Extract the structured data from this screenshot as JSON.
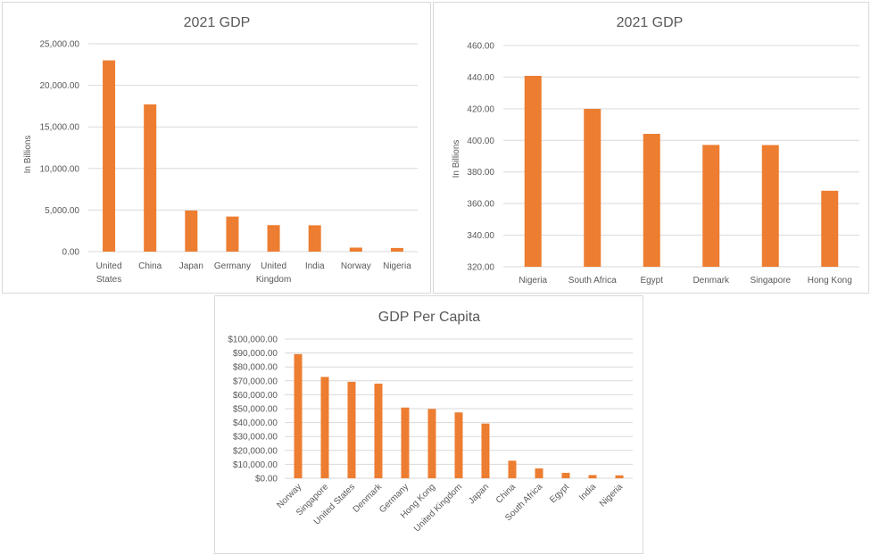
{
  "colors": {
    "bar": "#ed7d31",
    "grid": "#d9d9d9",
    "text": "#595959"
  },
  "chart_data": [
    {
      "type": "bar",
      "title": "2021 GDP",
      "ylabel": "In Billions",
      "xlabel": "",
      "categories": [
        "United States",
        "China",
        "Japan",
        "Germany",
        "United Kingdom",
        "India",
        "Norway",
        "Nigeria"
      ],
      "category_lines": [
        [
          "United",
          "States"
        ],
        [
          "China"
        ],
        [
          "Japan"
        ],
        [
          "Germany"
        ],
        [
          "United",
          "Kingdom"
        ],
        [
          "India"
        ],
        [
          "Norway"
        ],
        [
          "Nigeria"
        ]
      ],
      "values": [
        23000,
        17700,
        4940,
        4220,
        3190,
        3170,
        482,
        440
      ],
      "ylim": [
        0,
        25000
      ],
      "ticks": [
        0,
        5000,
        10000,
        15000,
        20000,
        25000
      ],
      "tick_labels": [
        "0.00",
        "5,000.00",
        "10,000.00",
        "15,000.00",
        "20,000.00",
        "25,000.00"
      ],
      "grid": true
    },
    {
      "type": "bar",
      "title": "2021 GDP",
      "ylabel": "In Billions",
      "xlabel": "",
      "categories": [
        "Nigeria",
        "South Africa",
        "Egypt",
        "Denmark",
        "Singapore",
        "Hong Kong"
      ],
      "category_lines": [
        [
          "Nigeria"
        ],
        [
          "South Africa"
        ],
        [
          "Egypt"
        ],
        [
          "Denmark"
        ],
        [
          "Singapore"
        ],
        [
          "Hong Kong"
        ]
      ],
      "values": [
        440.8,
        419.9,
        404.1,
        397.1,
        397.0,
        368.1
      ],
      "ylim": [
        320,
        460
      ],
      "ticks": [
        320,
        340,
        360,
        380,
        400,
        420,
        440,
        460
      ],
      "tick_labels": [
        "320.00",
        "340.00",
        "360.00",
        "380.00",
        "400.00",
        "420.00",
        "440.00",
        "460.00"
      ],
      "grid": true
    },
    {
      "type": "bar",
      "title": "GDP Per Capita",
      "ylabel": "",
      "xlabel": "",
      "categories": [
        "Norway",
        "Singapore",
        "United States",
        "Denmark",
        "Germany",
        "Hong Kong",
        "United Kingdom",
        "Japan",
        "China",
        "South Africa",
        "Egypt",
        "India",
        "Nigeria"
      ],
      "values": [
        89200,
        72800,
        69300,
        68000,
        50800,
        49800,
        47300,
        39300,
        12600,
        7100,
        3900,
        2300,
        2100
      ],
      "ylim": [
        0,
        100000
      ],
      "ticks": [
        0,
        10000,
        20000,
        30000,
        40000,
        50000,
        60000,
        70000,
        80000,
        90000,
        100000
      ],
      "tick_labels": [
        "$0.00",
        "$10,000.00",
        "$20,000.00",
        "$30,000.00",
        "$40,000.00",
        "$50,000.00",
        "$60,000.00",
        "$70,000.00",
        "$80,000.00",
        "$90,000.00",
        "$100,000.00"
      ],
      "grid": true,
      "rotated_labels": true
    }
  ]
}
